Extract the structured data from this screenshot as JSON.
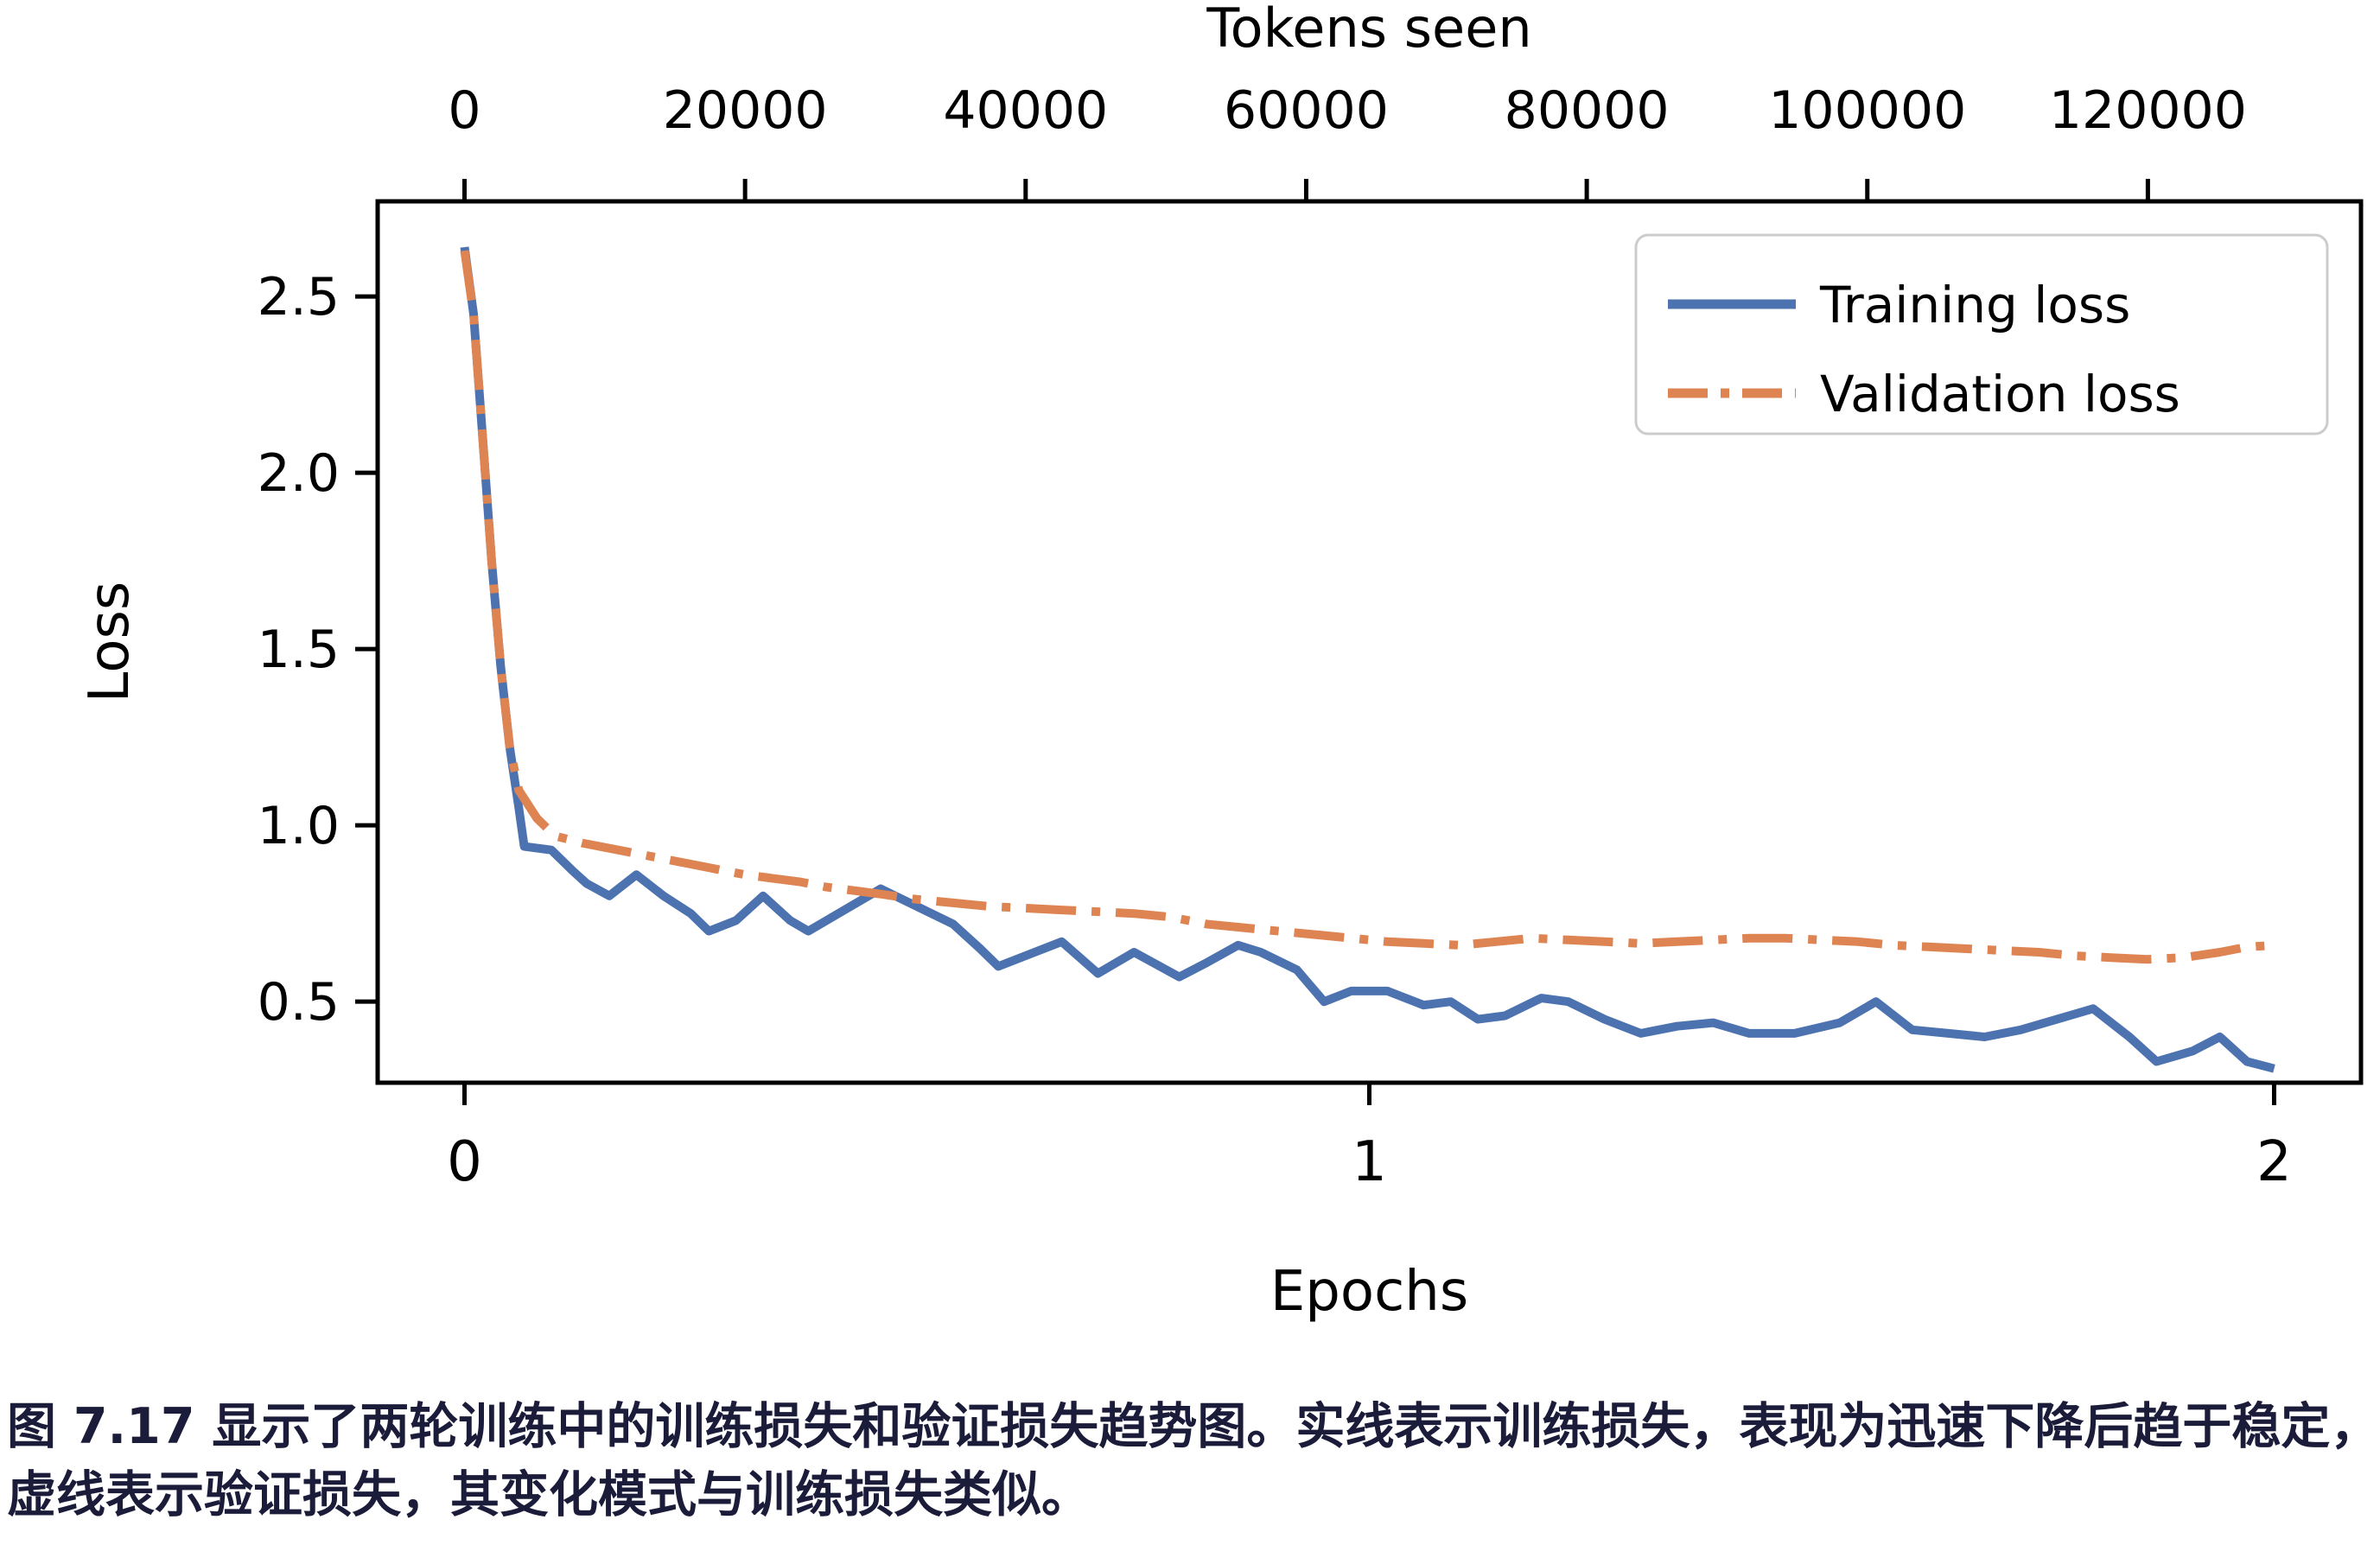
{
  "caption": {
    "line1": "图 7.17 显示了两轮训练中的训练损失和验证损失趋势图。实线表示训练损失，表现为迅速下降后趋于稳定，",
    "line2": "虚线表示验证损失，其变化模式与训练损失类似。"
  },
  "chart_data": {
    "type": "line",
    "title": "",
    "xlabel": "Epochs",
    "ylabel": "Loss",
    "top_xlabel": "Tokens seen",
    "xlim": [
      -0.096,
      2.096
    ],
    "ylim": [
      0.27,
      2.77
    ],
    "x_ticks": [
      0,
      1,
      2
    ],
    "y_ticks": [
      2.5,
      2.0,
      1.5,
      1.0,
      0.5
    ],
    "top_ticks_tokens": [
      0,
      20000,
      40000,
      60000,
      80000,
      100000,
      120000
    ],
    "tokens_per_epoch": 64500,
    "grid": false,
    "legend_position": "upper right",
    "legend": [
      "Training loss",
      "Validation loss"
    ],
    "axis_color": "#000000",
    "legend_border_color": "#cccccc",
    "background_color": "#ffffff",
    "series": [
      {
        "name": "Training loss",
        "color": "#4c72b0",
        "style": "solid",
        "x": [
          0.0,
          0.01,
          0.02,
          0.03,
          0.04,
          0.05,
          0.06,
          0.066,
          0.096,
          0.12,
          0.135,
          0.16,
          0.19,
          0.22,
          0.25,
          0.27,
          0.3,
          0.33,
          0.36,
          0.38,
          0.42,
          0.46,
          0.5,
          0.54,
          0.57,
          0.59,
          0.62,
          0.66,
          0.7,
          0.74,
          0.79,
          0.82,
          0.855,
          0.88,
          0.92,
          0.95,
          0.98,
          1.02,
          1.06,
          1.09,
          1.12,
          1.15,
          1.19,
          1.22,
          1.26,
          1.3,
          1.34,
          1.38,
          1.42,
          1.47,
          1.52,
          1.56,
          1.6,
          1.64,
          1.68,
          1.72,
          1.76,
          1.8,
          1.84,
          1.87,
          1.91,
          1.94,
          1.97,
          2.0
        ],
        "y": [
          2.64,
          2.45,
          2.1,
          1.75,
          1.45,
          1.22,
          1.05,
          0.94,
          0.93,
          0.87,
          0.835,
          0.8,
          0.86,
          0.8,
          0.75,
          0.7,
          0.73,
          0.8,
          0.73,
          0.7,
          0.76,
          0.82,
          0.77,
          0.72,
          0.65,
          0.6,
          0.63,
          0.67,
          0.58,
          0.64,
          0.57,
          0.61,
          0.66,
          0.64,
          0.59,
          0.5,
          0.53,
          0.53,
          0.49,
          0.5,
          0.45,
          0.46,
          0.51,
          0.5,
          0.45,
          0.41,
          0.43,
          0.44,
          0.41,
          0.41,
          0.44,
          0.5,
          0.42,
          0.41,
          0.4,
          0.42,
          0.45,
          0.48,
          0.4,
          0.33,
          0.36,
          0.4,
          0.33,
          0.31
        ]
      },
      {
        "name": "Validation loss",
        "color": "#dd8452",
        "style": "dashdot",
        "x": [
          0.0,
          0.01,
          0.02,
          0.03,
          0.04,
          0.05,
          0.06,
          0.08,
          0.1,
          0.13,
          0.16,
          0.19,
          0.22,
          0.25,
          0.28,
          0.31,
          0.34,
          0.37,
          0.4,
          0.43,
          0.46,
          0.5,
          0.54,
          0.58,
          0.62,
          0.66,
          0.7,
          0.74,
          0.78,
          0.82,
          0.86,
          0.9,
          0.94,
          0.98,
          1.02,
          1.06,
          1.1,
          1.14,
          1.18,
          1.22,
          1.26,
          1.3,
          1.34,
          1.38,
          1.42,
          1.46,
          1.5,
          1.54,
          1.58,
          1.62,
          1.66,
          1.7,
          1.74,
          1.78,
          1.82,
          1.86,
          1.9,
          1.94,
          1.97,
          2.0
        ],
        "y": [
          2.63,
          2.45,
          2.1,
          1.75,
          1.45,
          1.22,
          1.1,
          1.02,
          0.97,
          0.95,
          0.935,
          0.92,
          0.905,
          0.89,
          0.875,
          0.86,
          0.85,
          0.84,
          0.825,
          0.815,
          0.805,
          0.79,
          0.78,
          0.77,
          0.765,
          0.76,
          0.755,
          0.75,
          0.74,
          0.72,
          0.71,
          0.7,
          0.69,
          0.68,
          0.67,
          0.665,
          0.66,
          0.67,
          0.68,
          0.675,
          0.67,
          0.665,
          0.67,
          0.675,
          0.68,
          0.68,
          0.675,
          0.67,
          0.66,
          0.655,
          0.65,
          0.645,
          0.64,
          0.63,
          0.625,
          0.62,
          0.625,
          0.64,
          0.655,
          0.66
        ]
      }
    ]
  }
}
